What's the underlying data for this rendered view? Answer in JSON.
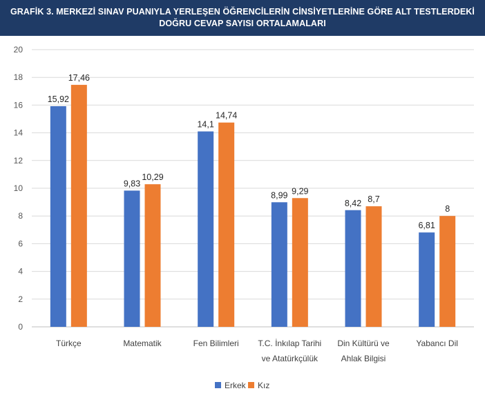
{
  "title": {
    "line1": "GRAFİK 3. MERKEZİ SINAV PUANIYLA YERLEŞEN ÖĞRENCİLERİN CİNSİYETLERİNE GÖRE ALT TESTLERDEKİ",
    "line2": "DOĞRU CEVAP SAYISI ORTALAMALARI"
  },
  "colors": {
    "title_bg": "#1f3b66",
    "erkek": "#4472c4",
    "kiz": "#ed7d31",
    "grid": "#d9d9d9"
  },
  "chart_data": {
    "type": "bar",
    "categories": [
      [
        "Türkçe"
      ],
      [
        "Matematik"
      ],
      [
        "Fen Bilimleri"
      ],
      [
        "T.C. İnkılap Tarihi",
        "ve Atatürkçülük"
      ],
      [
        "Din Kültürü ve",
        "Ahlak Bilgisi"
      ],
      [
        "Yabancı Dil"
      ]
    ],
    "series": [
      {
        "name": "Erkek",
        "values": [
          15.92,
          9.83,
          14.1,
          8.99,
          8.42,
          6.81
        ],
        "labels": [
          "15,92",
          "9,83",
          "14,1",
          "8,99",
          "8,42",
          "6,81"
        ]
      },
      {
        "name": "Kız",
        "values": [
          17.46,
          10.29,
          14.74,
          9.29,
          8.7,
          8
        ],
        "labels": [
          "17,46",
          "10,29",
          "14,74",
          "9,29",
          "8,7",
          "8"
        ]
      }
    ],
    "ylim": [
      0,
      20
    ],
    "yticks": [
      0,
      2,
      4,
      6,
      8,
      10,
      12,
      14,
      16,
      18,
      20
    ],
    "grid": true,
    "legend_position": "bottom"
  }
}
